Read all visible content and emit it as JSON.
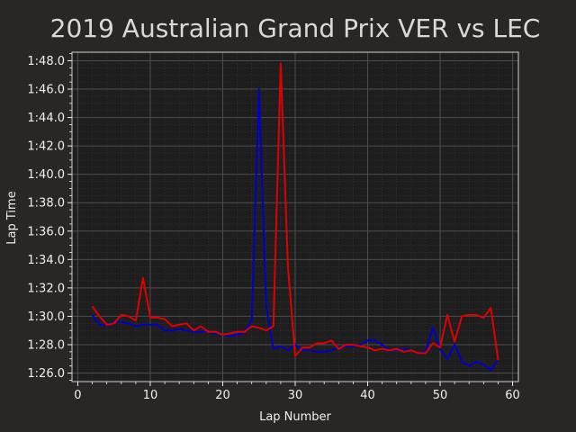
{
  "chart_data": {
    "type": "line",
    "title": "2019 Australian Grand Prix VER vs LEC",
    "xlabel": "Lap Number",
    "ylabel": "Lap Time",
    "xlim": [
      -0.8,
      60.8
    ],
    "ylim": [
      85.4,
      108.6
    ],
    "x_ticks": [
      0,
      10,
      20,
      30,
      40,
      50,
      60
    ],
    "y_ticks": [
      {
        "value": 86,
        "label": "1:26.0"
      },
      {
        "value": 88,
        "label": "1:28.0"
      },
      {
        "value": 90,
        "label": "1:30.0"
      },
      {
        "value": 92,
        "label": "1:32.0"
      },
      {
        "value": 94,
        "label": "1:34.0"
      },
      {
        "value": 96,
        "label": "1:36.0"
      },
      {
        "value": 98,
        "label": "1:38.0"
      },
      {
        "value": 100,
        "label": "1:40.0"
      },
      {
        "value": 102,
        "label": "1:42.0"
      },
      {
        "value": 104,
        "label": "1:44.0"
      },
      {
        "value": 106,
        "label": "1:46.0"
      },
      {
        "value": 108,
        "label": "1:48.0"
      }
    ],
    "grid": true,
    "series": [
      {
        "color": "#0000c8",
        "x": [
          2,
          3,
          4,
          5,
          6,
          7,
          8,
          9,
          10,
          11,
          12,
          13,
          14,
          15,
          16,
          17,
          18,
          19,
          20,
          21,
          22,
          23,
          24,
          25,
          26,
          27,
          28,
          29,
          30,
          31,
          32,
          33,
          34,
          35,
          36,
          37,
          38,
          39,
          40,
          41,
          42,
          43,
          44,
          45,
          46,
          47,
          48,
          49,
          50,
          51,
          52,
          53,
          54,
          55,
          56,
          57,
          58
        ],
        "values": [
          90.1,
          89.4,
          89.4,
          89.6,
          89.6,
          89.5,
          89.3,
          89.4,
          89.4,
          89.4,
          89.0,
          89.0,
          89.1,
          89.0,
          88.9,
          88.9,
          88.9,
          88.8,
          88.7,
          88.6,
          88.7,
          88.9,
          89.7,
          106.0,
          90.7,
          87.7,
          87.9,
          87.6,
          88.0,
          87.6,
          87.6,
          87.5,
          87.5,
          87.6,
          87.8,
          87.9,
          87.9,
          88.0,
          88.3,
          88.3,
          88.0,
          87.6,
          87.6,
          87.7,
          87.6,
          87.4,
          87.5,
          89.2,
          87.7,
          87.0,
          88.0,
          86.8,
          86.5,
          86.8,
          86.6,
          86.2,
          87.0
        ]
      },
      {
        "color": "#e00000",
        "x": [
          2,
          3,
          4,
          5,
          6,
          7,
          8,
          9,
          10,
          11,
          12,
          13,
          14,
          15,
          16,
          17,
          18,
          19,
          20,
          21,
          22,
          23,
          24,
          25,
          26,
          27,
          28,
          29,
          30,
          31,
          32,
          33,
          34,
          35,
          36,
          37,
          38,
          39,
          40,
          41,
          42,
          43,
          44,
          45,
          46,
          47,
          48,
          49,
          50,
          51,
          52,
          53,
          54,
          55,
          56,
          57,
          58
        ],
        "values": [
          90.7,
          90.0,
          89.4,
          89.5,
          90.1,
          90.0,
          89.7,
          92.7,
          89.9,
          89.9,
          89.8,
          89.3,
          89.4,
          89.5,
          89.0,
          89.3,
          88.9,
          88.9,
          88.7,
          88.8,
          88.9,
          88.9,
          89.3,
          89.2,
          89.0,
          89.3,
          107.8,
          93.5,
          87.2,
          87.8,
          87.8,
          88.1,
          88.1,
          88.3,
          87.7,
          88.0,
          88.0,
          87.9,
          87.8,
          87.6,
          87.7,
          87.6,
          87.7,
          87.5,
          87.6,
          87.4,
          87.4,
          88.1,
          87.8,
          90.1,
          88.2,
          90.0,
          90.1,
          90.1,
          89.9,
          90.6,
          86.9
        ]
      }
    ]
  }
}
